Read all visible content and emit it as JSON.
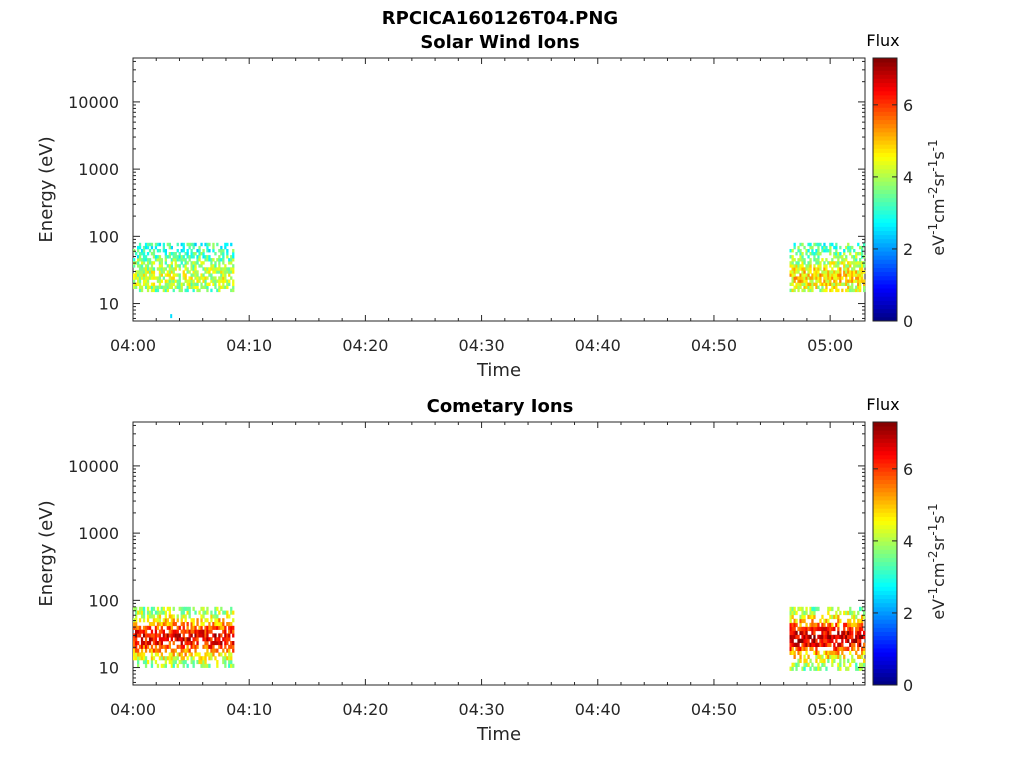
{
  "figure": {
    "title": "RPCICA160126T04.PNG"
  },
  "chart_data": [
    {
      "type": "heatmap",
      "title": "Solar Wind Ions",
      "xlabel": "Time",
      "ylabel": "Energy (eV)",
      "x_ticks": [
        "04:00",
        "04:10",
        "04:20",
        "04:30",
        "04:40",
        "04:50",
        "05:00"
      ],
      "x_range_minutes": [
        0,
        63
      ],
      "y_scale": "log",
      "y_ticks": [
        "10",
        "100",
        "1000",
        "10000"
      ],
      "ylim": [
        5.5,
        45000
      ],
      "colorbar": {
        "title": "Flux",
        "label": "eV-1cm-2sr-1s-1",
        "ticks": [
          "0",
          "2",
          "4",
          "6"
        ],
        "range": [
          0,
          7.3
        ],
        "colormap": "jet"
      },
      "data_blocks": [
        {
          "t_start": "04:00",
          "t_end": "04:08.7",
          "energy_range_eV": [
            15,
            80
          ],
          "peak_energy_eV": 25,
          "peak_flux": 4.2,
          "typical_flux": 3.0
        },
        {
          "t_start": "04:56.5",
          "t_end": "05:03",
          "energy_range_eV": [
            15,
            80
          ],
          "peak_energy_eV": 25,
          "peak_flux": 4.8,
          "typical_flux": 3.2
        }
      ],
      "isolated_points": [
        {
          "t": "04:03.2",
          "energy_eV": 6.5,
          "flux": 2.5
        }
      ]
    },
    {
      "type": "heatmap",
      "title": "Cometary Ions",
      "xlabel": "Time",
      "ylabel": "Energy (eV)",
      "x_ticks": [
        "04:00",
        "04:10",
        "04:20",
        "04:30",
        "04:40",
        "04:50",
        "05:00"
      ],
      "x_range_minutes": [
        0,
        63
      ],
      "y_scale": "log",
      "y_ticks": [
        "10",
        "100",
        "1000",
        "10000"
      ],
      "ylim": [
        5.5,
        45000
      ],
      "colorbar": {
        "title": "Flux",
        "label": "eV-1cm-2sr-1s-1",
        "ticks": [
          "0",
          "2",
          "4",
          "6"
        ],
        "range": [
          0,
          7.3
        ],
        "colormap": "jet"
      },
      "data_blocks": [
        {
          "t_start": "04:00",
          "t_end": "04:08.7",
          "energy_range_eV": [
            10,
            80
          ],
          "peak_energy_eV": 28,
          "peak_flux": 6.5,
          "typical_flux": 3.5
        },
        {
          "t_start": "04:56.5",
          "t_end": "05:03",
          "energy_range_eV": [
            9,
            80
          ],
          "peak_energy_eV": 28,
          "peak_flux": 6.8,
          "typical_flux": 3.5
        }
      ]
    }
  ]
}
